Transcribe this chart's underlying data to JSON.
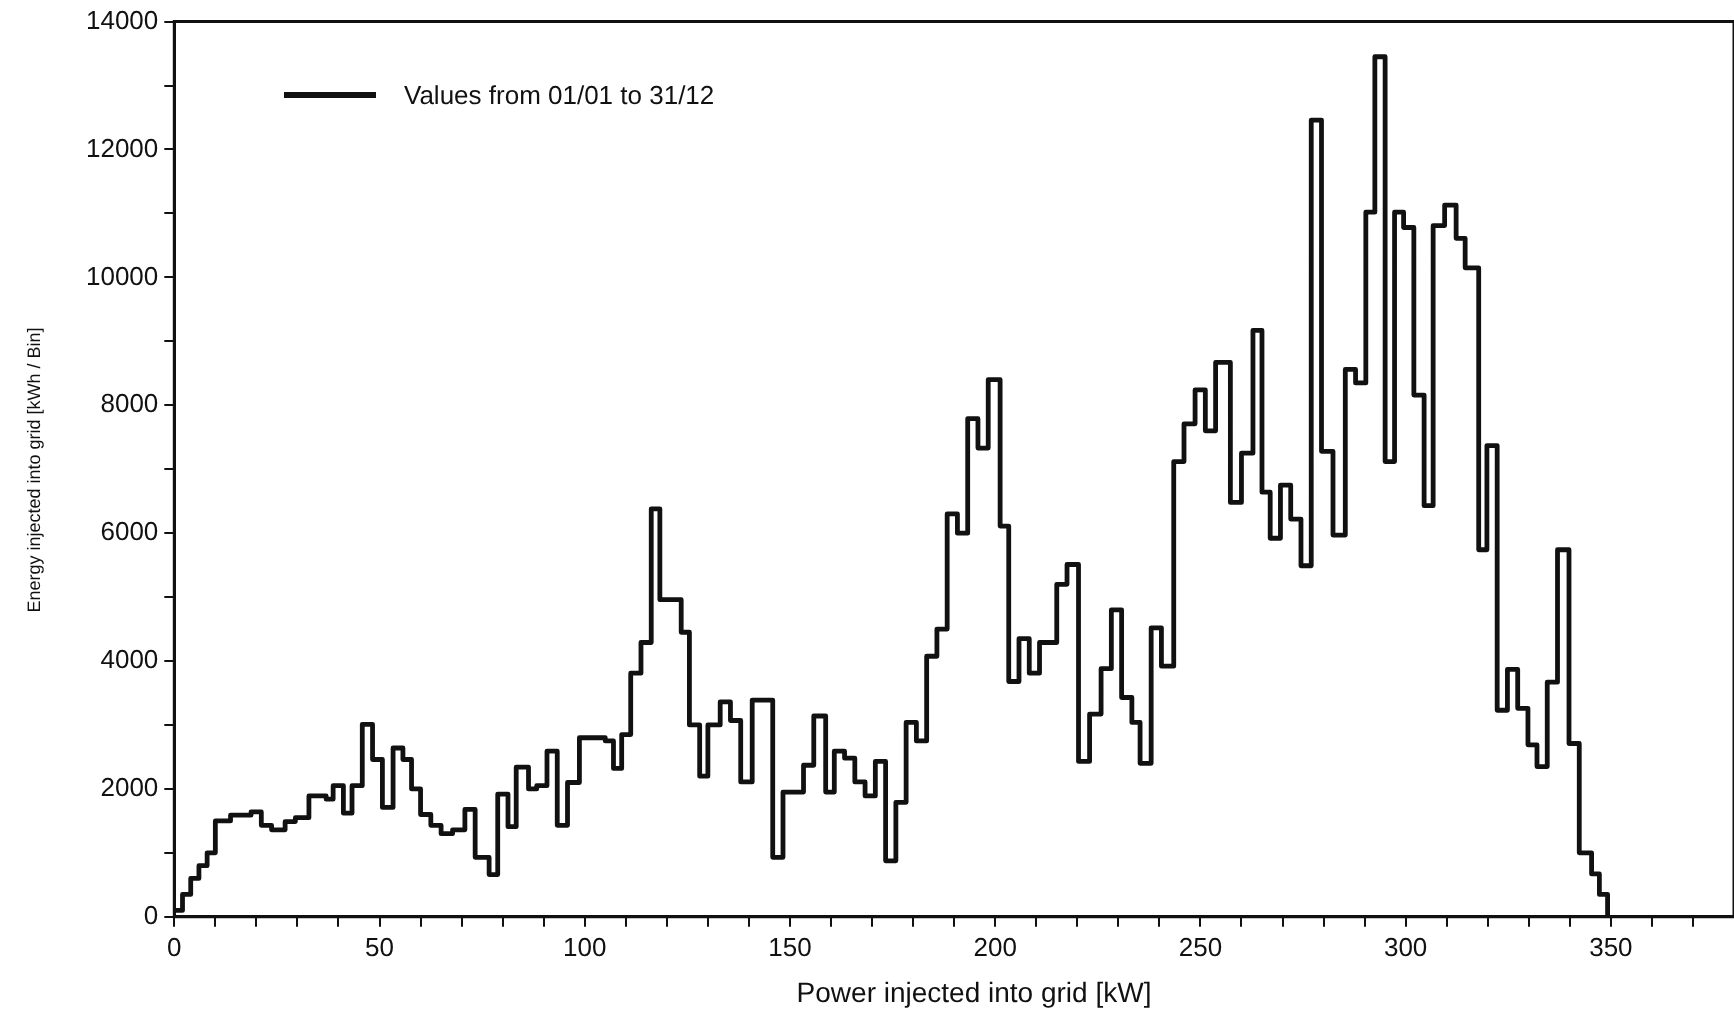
{
  "chart_data": {
    "type": "step",
    "xlabel": "Power injected into grid [kW]",
    "ylabel": "Energy injected into grid [kWh / Bin]",
    "legend": "top left",
    "line_style": "solid",
    "marker": "none",
    "grid": false,
    "xlim": [
      0,
      380
    ],
    "xticks": [
      0,
      {
        "value": 10,
        "label": null
      },
      {
        "value": 20,
        "label": null
      },
      {
        "value": 30,
        "label": null
      },
      {
        "value": 40,
        "label": null
      },
      50,
      {
        "value": 60,
        "label": null
      },
      {
        "value": 70,
        "label": null
      },
      {
        "value": 80,
        "label": null
      },
      {
        "value": 90,
        "label": null
      },
      100,
      {
        "value": 110,
        "label": null
      },
      {
        "value": 120,
        "label": null
      },
      {
        "value": 130,
        "label": null
      },
      {
        "value": 140,
        "label": null
      },
      150,
      {
        "value": 160,
        "label": null
      },
      {
        "value": 170,
        "label": null
      },
      {
        "value": 180,
        "label": null
      },
      {
        "value": 190,
        "label": null
      },
      200,
      {
        "value": 210,
        "label": null
      },
      {
        "value": 220,
        "label": null
      },
      {
        "value": 230,
        "label": null
      },
      {
        "value": 240,
        "label": null
      },
      250,
      {
        "value": 260,
        "label": null
      },
      {
        "value": 270,
        "label": null
      },
      {
        "value": 280,
        "label": null
      },
      {
        "value": 290,
        "label": null
      },
      300,
      {
        "value": 310,
        "label": null
      },
      {
        "value": 320,
        "label": null
      },
      {
        "value": 330,
        "label": null
      },
      {
        "value": 340,
        "label": null
      },
      350,
      {
        "value": 360,
        "label": null
      },
      {
        "value": 370,
        "label": null
      }
    ],
    "ylim": [
      0,
      14000
    ],
    "yticks": [
      0,
      {
        "value": 1000,
        "label": null
      },
      2000,
      {
        "value": 3000,
        "label": null
      },
      4000,
      {
        "value": 5000,
        "label": null
      },
      6000,
      {
        "value": 7000,
        "label": null
      },
      8000,
      {
        "value": 9000,
        "label": null
      },
      10000,
      {
        "value": 11000,
        "label": null
      },
      12000,
      {
        "value": 13000,
        "label": null
      },
      14000
    ],
    "series": [
      {
        "name": "Values from 01/01 to 31/12",
        "color": "#111111",
        "x": [
          0,
          2,
          4,
          6,
          8,
          10,
          13.7,
          18.7,
          21.2,
          23.7,
          27,
          29.5,
          32.8,
          37,
          38.7,
          41.2,
          43.3,
          45.8,
          48.3,
          50.7,
          53.3,
          55.7,
          57.8,
          60,
          62.5,
          65,
          67.8,
          70.8,
          73.3,
          76.7,
          78.8,
          81.3,
          83.3,
          86.3,
          88.3,
          90.8,
          93.3,
          95.8,
          98.7,
          105,
          107,
          109,
          111.2,
          113.7,
          116.2,
          118.3,
          123.5,
          125.5,
          128,
          130,
          133,
          135.5,
          138,
          140.8,
          145.8,
          148.3,
          153.3,
          155.8,
          158.7,
          160.8,
          163.3,
          165.8,
          168.3,
          170.8,
          173.3,
          175.8,
          178.3,
          180.8,
          183.3,
          185.8,
          188.3,
          190.8,
          193.3,
          195.8,
          198.3,
          201.2,
          203.3,
          205.8,
          208.3,
          210.8,
          215,
          217.5,
          220.3,
          223,
          225.8,
          228.3,
          230.8,
          233.3,
          235.3,
          238,
          240.5,
          243.5,
          246,
          248.7,
          251.2,
          253.7,
          257.3,
          260,
          262.8,
          265,
          267,
          269.5,
          272,
          274.5,
          277,
          279.5,
          282.3,
          285.3,
          287.8,
          290.3,
          292.5,
          295,
          297.3,
          299.5,
          302,
          304.5,
          306.7,
          309.5,
          312.3,
          314.5,
          317.8,
          319.8,
          322.3,
          324.8,
          327.3,
          329.8,
          332,
          334.5,
          337,
          339.8,
          342.3,
          345.3,
          347.2,
          349.2
        ],
        "values": [
          100,
          350,
          600,
          800,
          1000,
          1500,
          1590,
          1640,
          1430,
          1360,
          1490,
          1550,
          1890,
          1840,
          2050,
          1620,
          2050,
          3010,
          2460,
          1710,
          2640,
          2460,
          2000,
          1600,
          1430,
          1300,
          1360,
          1680,
          930,
          660,
          1920,
          1410,
          2340,
          2000,
          2050,
          2590,
          1430,
          2100,
          2800,
          2750,
          2320,
          2850,
          3810,
          4290,
          6380,
          4960,
          4450,
          3000,
          2200,
          3000,
          3360,
          3070,
          2110,
          3390,
          930,
          1950,
          2370,
          3140,
          1950,
          2590,
          2480,
          2110,
          1890,
          2430,
          875,
          1790,
          3040,
          2750,
          4075,
          4500,
          6300,
          6000,
          7790,
          7330,
          8400,
          6110,
          3680,
          4350,
          3810,
          4290,
          5200,
          5510,
          2430,
          3170,
          3880,
          4800,
          3430,
          3040,
          2400,
          4520,
          3920,
          7120,
          7710,
          8240,
          7600,
          8670,
          6480,
          7250,
          9170,
          6640,
          5920,
          6750,
          6220,
          5490,
          12460,
          7280,
          5970,
          8560,
          8350,
          11020,
          13450,
          7120,
          11020,
          10780,
          8160,
          6430,
          10810,
          11130,
          10610,
          10150,
          5740,
          7370,
          3230,
          3870,
          3260,
          2690,
          2350,
          3670,
          5740,
          2710,
          1000,
          670,
          350,
          0
        ]
      }
    ]
  }
}
